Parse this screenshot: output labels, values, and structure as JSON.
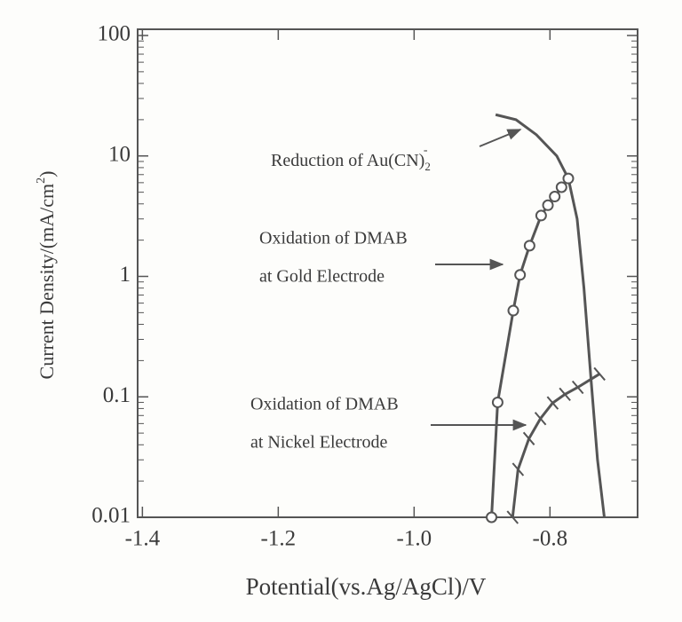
{
  "chart_data": {
    "type": "line",
    "xlabel": [
      "Potential",
      "(vs.Ag/AgCl)/V"
    ],
    "ylabel": [
      "Current Density/(mA/cm",
      "2",
      ")"
    ],
    "xlim": [
      -1.407,
      -0.671
    ],
    "xticks": [
      -1.4,
      -1.2,
      {
        "value": -1,
        "label": "-1.0"
      },
      -0.8
    ],
    "ylim": [
      0.01,
      100
    ],
    "yticks": [
      0.01,
      0.1,
      1,
      10,
      100
    ],
    "log_y": true,
    "color": "#555555",
    "series": [
      {
        "annotation": {
          "text": "Reduction of Au(CN)",
          "sub": "2",
          "sup": "-"
        },
        "marker": "none",
        "x": [
          -0.88,
          -0.85,
          -0.82,
          -0.79,
          -0.773,
          -0.76,
          -0.75,
          -0.74,
          -0.73,
          -0.72
        ],
        "values": [
          22,
          20,
          15,
          10,
          6.5,
          3,
          0.8,
          0.15,
          0.03,
          0.01
        ]
      },
      {
        "annotation": {
          "lines": [
            "Oxidation of DMAB",
            "at Gold Electrode"
          ]
        },
        "marker": "circle",
        "x": [
          -0.886,
          -0.877,
          -0.854,
          -0.844,
          -0.83,
          -0.813,
          -0.803,
          -0.793,
          -0.783,
          -0.773
        ],
        "values": [
          0.01,
          0.09,
          0.52,
          1.03,
          1.8,
          3.2,
          3.9,
          4.6,
          5.5,
          6.5
        ]
      },
      {
        "annotation": {
          "lines": [
            "Oxidation of DMAB",
            "at Nickel Electrode"
          ]
        },
        "marker": "tick",
        "x": [
          -0.855,
          -0.847,
          -0.831,
          -0.814,
          -0.796,
          -0.778,
          -0.759,
          -0.727
        ],
        "values": [
          0.01,
          0.025,
          0.045,
          0.066,
          0.089,
          0.105,
          0.12,
          0.155
        ]
      }
    ]
  }
}
